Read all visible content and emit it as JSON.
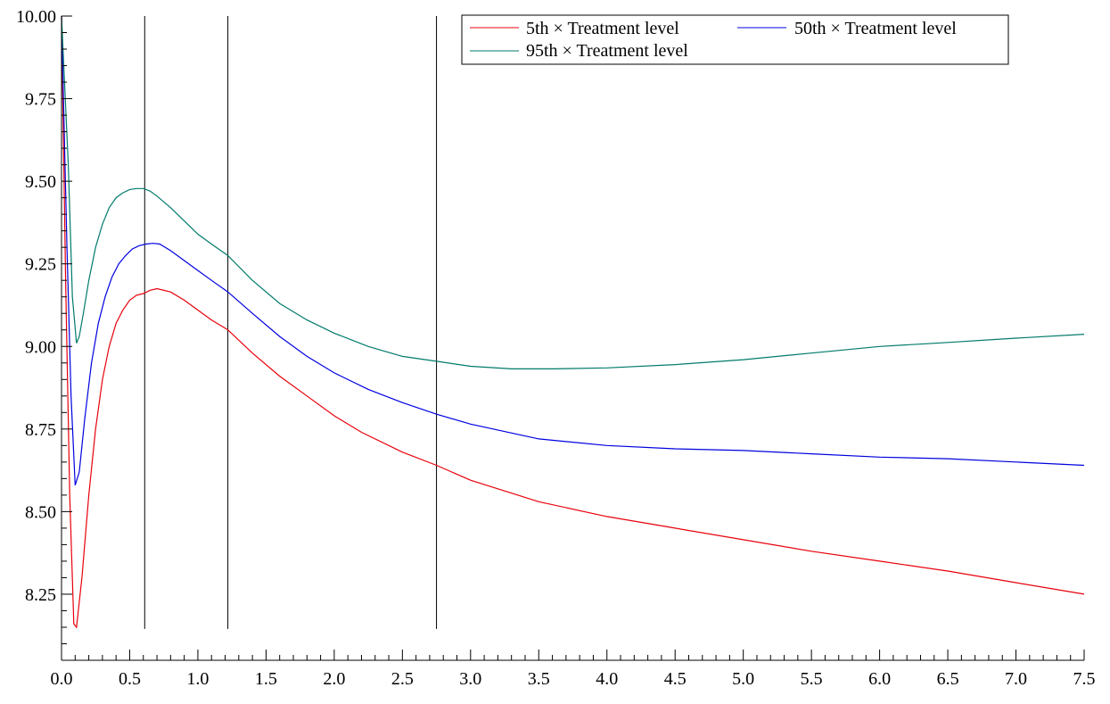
{
  "chart_data": {
    "type": "line",
    "title": "",
    "xlabel": "",
    "ylabel": "",
    "xlim": [
      0,
      7.5
    ],
    "ylim": [
      8.05,
      10.0
    ],
    "x_ticks": [
      0.0,
      0.5,
      1.0,
      1.5,
      2.0,
      2.5,
      3.0,
      3.5,
      4.0,
      4.5,
      5.0,
      5.5,
      6.0,
      6.5,
      7.0,
      7.5
    ],
    "x_tick_labels": [
      "0.0",
      "0.5",
      "1.0",
      "1.5",
      "2.0",
      "2.5",
      "3.0",
      "3.5",
      "4.0",
      "4.5",
      "5.0",
      "5.5",
      "6.0",
      "6.5",
      "7.0",
      "7.5"
    ],
    "y_ticks": [
      8.25,
      8.5,
      8.75,
      9.0,
      9.25,
      9.5,
      9.75,
      10.0
    ],
    "y_tick_labels": [
      "8.25",
      "8.50",
      "8.75",
      "9.00",
      "9.25",
      "9.50",
      "9.75",
      "10.00"
    ],
    "grid": false,
    "legend_position": "top-right",
    "vertical_lines": {
      "x": [
        0.61,
        1.22,
        2.75
      ],
      "y_bottom": 8.145,
      "y_top": 10.0,
      "color": "#000000"
    },
    "series": [
      {
        "name": "5th × Treatment level",
        "color": "#e8000b",
        "x": [
          0.0,
          0.03,
          0.06,
          0.09,
          0.11,
          0.15,
          0.2,
          0.25,
          0.3,
          0.35,
          0.4,
          0.45,
          0.5,
          0.55,
          0.6,
          0.65,
          0.7,
          0.8,
          0.9,
          1.0,
          1.1,
          1.22,
          1.4,
          1.6,
          1.8,
          2.0,
          2.2,
          2.5,
          2.75,
          3.0,
          3.5,
          4.0,
          4.5,
          5.0,
          5.5,
          6.0,
          6.5,
          7.0,
          7.5
        ],
        "y": [
          10.0,
          9.2,
          8.55,
          8.16,
          8.15,
          8.3,
          8.55,
          8.75,
          8.9,
          9.0,
          9.07,
          9.11,
          9.14,
          9.155,
          9.16,
          9.17,
          9.175,
          9.165,
          9.14,
          9.11,
          9.08,
          9.05,
          8.98,
          8.91,
          8.85,
          8.79,
          8.74,
          8.68,
          8.64,
          8.595,
          8.53,
          8.485,
          8.45,
          8.415,
          8.38,
          8.35,
          8.32,
          8.285,
          8.25
        ]
      },
      {
        "name": "50th × Treatment level",
        "color": "#0000e0",
        "x": [
          0.0,
          0.04,
          0.07,
          0.1,
          0.13,
          0.17,
          0.22,
          0.27,
          0.32,
          0.37,
          0.42,
          0.47,
          0.52,
          0.57,
          0.62,
          0.67,
          0.72,
          0.8,
          0.9,
          1.0,
          1.1,
          1.22,
          1.4,
          1.6,
          1.8,
          2.0,
          2.25,
          2.5,
          2.75,
          3.0,
          3.5,
          4.0,
          4.5,
          5.0,
          5.5,
          6.0,
          6.5,
          7.0,
          7.5
        ],
        "y": [
          10.0,
          9.3,
          8.85,
          8.58,
          8.62,
          8.78,
          8.95,
          9.07,
          9.15,
          9.21,
          9.25,
          9.275,
          9.295,
          9.305,
          9.31,
          9.312,
          9.31,
          9.29,
          9.26,
          9.23,
          9.2,
          9.165,
          9.1,
          9.03,
          8.97,
          8.92,
          8.87,
          8.83,
          8.795,
          8.765,
          8.72,
          8.7,
          8.69,
          8.685,
          8.675,
          8.665,
          8.66,
          8.65,
          8.64
        ]
      },
      {
        "name": "95th × Treatment level",
        "color": "#007a6a",
        "x": [
          0.0,
          0.05,
          0.08,
          0.11,
          0.13,
          0.16,
          0.2,
          0.25,
          0.3,
          0.35,
          0.4,
          0.45,
          0.5,
          0.55,
          0.6,
          0.65,
          0.7,
          0.8,
          0.9,
          1.0,
          1.1,
          1.22,
          1.4,
          1.6,
          1.8,
          2.0,
          2.25,
          2.5,
          2.75,
          3.0,
          3.3,
          3.6,
          4.0,
          4.5,
          5.0,
          5.5,
          6.0,
          6.5,
          7.0,
          7.5
        ],
        "y": [
          10.0,
          9.55,
          9.15,
          9.01,
          9.03,
          9.1,
          9.2,
          9.3,
          9.37,
          9.42,
          9.45,
          9.465,
          9.475,
          9.478,
          9.478,
          9.47,
          9.455,
          9.42,
          9.38,
          9.34,
          9.31,
          9.275,
          9.2,
          9.13,
          9.08,
          9.04,
          9.0,
          8.97,
          8.955,
          8.94,
          8.932,
          8.932,
          8.935,
          8.945,
          8.96,
          8.98,
          9.0,
          9.012,
          9.025,
          9.037
        ]
      }
    ]
  }
}
